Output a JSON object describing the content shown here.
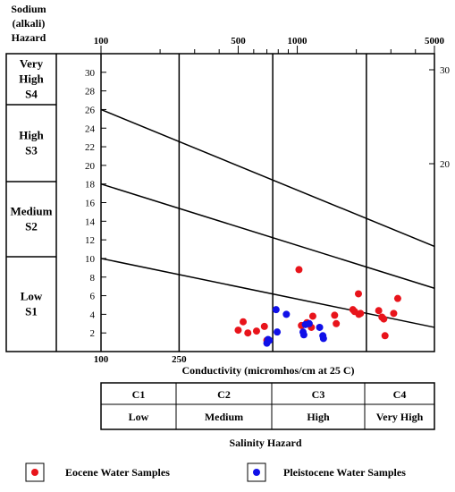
{
  "chart_data": {
    "type": "scatter",
    "title": "",
    "xlabel": "Conductivity (micromhos/cm at 25 C)",
    "ylabel_lines": [
      "Sodium",
      "(alkali)",
      "Hazard"
    ],
    "x_scale": "log",
    "xlim": [
      100,
      5000
    ],
    "ylim": [
      0,
      32
    ],
    "top_ticks": [
      "100",
      "500",
      "1000",
      "5000"
    ],
    "bottom_ticks": [
      "100",
      "250"
    ],
    "right_ticks": [
      "30",
      "20"
    ],
    "left_ticks": [
      "2",
      "4",
      "6",
      "8",
      "10",
      "12",
      "14",
      "16",
      "18",
      "20",
      "22",
      "24",
      "26",
      "28",
      "30"
    ],
    "sodium_classes": [
      {
        "line1": "Very",
        "line2": "High",
        "line3": "S4"
      },
      {
        "line1": "High",
        "line2": "S3",
        "line3": ""
      },
      {
        "line1": "Medium",
        "line2": "S2",
        "line3": ""
      },
      {
        "line1": "Low",
        "line2": "S1",
        "line3": ""
      }
    ],
    "salinity_classes": [
      {
        "code": "C1",
        "name": "Low"
      },
      {
        "code": "C2",
        "name": "Medium"
      },
      {
        "code": "C3",
        "name": "High"
      },
      {
        "code": "C4",
        "name": "Very High"
      }
    ],
    "salinity_title": "Salinity Hazard",
    "hazard_lines": [
      {
        "x": [
          100,
          5000
        ],
        "y": [
          26,
          11.3
        ]
      },
      {
        "x": [
          100,
          5000
        ],
        "y": [
          18,
          6.8
        ]
      },
      {
        "x": [
          100,
          5000
        ],
        "y": [
          10,
          2.6
        ]
      }
    ],
    "series": [
      {
        "name": "Eocene Water Samples",
        "color": "#e8141b",
        "x": [
          500,
          530,
          560,
          620,
          680,
          700,
          1020,
          1050,
          1120,
          1180,
          1200,
          1550,
          1580,
          1920,
          1960,
          2050,
          2060,
          2100,
          2600,
          2700,
          2760,
          2800,
          3100,
          3250
        ],
        "y": [
          2.3,
          3.2,
          2.0,
          2.2,
          2.7,
          1.2,
          8.8,
          2.8,
          3.1,
          2.6,
          3.8,
          3.9,
          3.0,
          4.5,
          4.3,
          6.2,
          4.0,
          4.1,
          4.4,
          3.7,
          3.5,
          1.7,
          4.1,
          5.7
        ]
      },
      {
        "name": "Pleistocene Water Samples",
        "color": "#1010e8",
        "x": [
          700,
          710,
          720,
          780,
          790,
          880,
          1070,
          1080,
          1100,
          1150,
          1300,
          1350,
          1360
        ],
        "y": [
          0.9,
          1.3,
          1.2,
          4.5,
          2.1,
          4.0,
          2.1,
          1.8,
          2.9,
          3.0,
          2.6,
          1.7,
          1.4
        ]
      }
    ]
  }
}
